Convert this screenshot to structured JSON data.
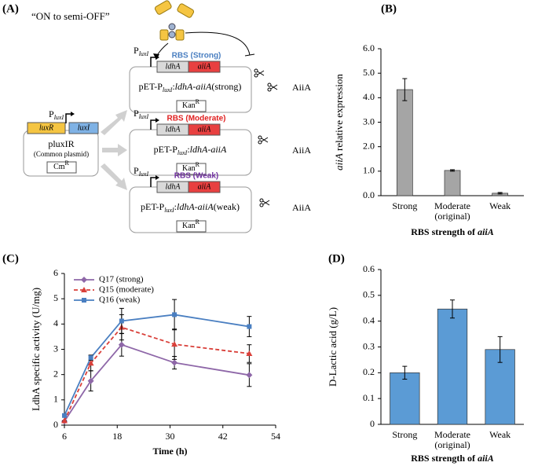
{
  "diagram": {
    "label": "(A)",
    "caption": "“ON to semi-OFF”",
    "common_plasmid": {
      "genes": [
        "luxR",
        "luxI"
      ],
      "gene_colors": [
        "#f5c542",
        "#7fb2e5"
      ],
      "promoter": {
        "text": "P",
        "sub": "luxI"
      },
      "name": "pluxIR",
      "note": "(Common plasmid)",
      "marker": {
        "text": "Cm",
        "sup": "R"
      }
    },
    "plasmids": [
      {
        "promoter": {
          "text": "P",
          "sub": "luxI"
        },
        "rbs": "RBS (Strong)",
        "rbs_color": "#4a7fc1",
        "genes": [
          "ldhA",
          "aiiA"
        ],
        "name": {
          "prefix": "pET-P",
          "sub": "luxI",
          "sep": ":",
          "genes": "ldhA-aiiA",
          "suffix": "(strong)"
        },
        "marker": {
          "text": "Kan",
          "sup": "R"
        },
        "product": "AiiA"
      },
      {
        "promoter": {
          "text": "P",
          "sub": "luxI"
        },
        "rbs": "RBS (Moderate)",
        "rbs_color": "#e02020",
        "genes": [
          "ldhA",
          "aiiA"
        ],
        "name": {
          "prefix": "pET-P",
          "sub": "luxI",
          "sep": ":",
          "genes": "ldhA-aiiA"
        },
        "marker": {
          "text": "Kan",
          "sup": "R"
        },
        "product": "AiiA"
      },
      {
        "promoter": {
          "text": "P",
          "sub": "luxI"
        },
        "rbs": "RBS (Weak)",
        "rbs_color": "#7030a0",
        "genes": [
          "ldhA",
          "aiiA"
        ],
        "name": {
          "prefix": "pET-P",
          "sub": "luxI",
          "sep": ":",
          "genes": "ldhA-aiiA",
          "suffix": "(weak)"
        },
        "marker": {
          "text": "Kan",
          "sup": "R"
        },
        "product": "AiiA"
      }
    ]
  },
  "chart_data": [
    {
      "type": "bar",
      "panel": "(B)",
      "categories": [
        [
          "Strong"
        ],
        [
          "Moderate",
          "(original)"
        ],
        [
          "Weak"
        ]
      ],
      "values": [
        4.33,
        1.03,
        0.1
      ],
      "errors": [
        0.45,
        0.03,
        0.03
      ],
      "color": "#a5a5a5",
      "ylim": [
        0,
        6
      ],
      "yticks": [
        {
          "value": 0,
          "label": "0.0"
        },
        {
          "value": 1,
          "label": "1.0"
        },
        {
          "value": 2,
          "label": "2.0"
        },
        {
          "value": 3,
          "label": "3.0"
        },
        {
          "value": 4,
          "label": "4.0"
        },
        {
          "value": 5,
          "label": "5.0"
        },
        {
          "value": 6,
          "label": "6.0"
        }
      ],
      "ylabel": {
        "italic": "aiiA",
        "text": " relative expression"
      },
      "xlabel": {
        "text": "RBS strength of ",
        "italic": "aiiA"
      }
    },
    {
      "type": "line",
      "panel": "(C)",
      "x": [
        6,
        12,
        19,
        31,
        48
      ],
      "series": [
        {
          "name": "Q17 (strong)",
          "color": "#8e67a8",
          "marker": "diamond",
          "linestyle": "solid",
          "values": [
            0.15,
            1.75,
            3.18,
            2.47,
            1.98
          ],
          "errors": [
            0,
            0.4,
            0.45,
            0.25,
            0.45
          ]
        },
        {
          "name": "Q15 (moderate)",
          "color": "#d9403a",
          "marker": "triangle",
          "linestyle": "dashed",
          "values": [
            0.17,
            2.45,
            3.87,
            3.2,
            2.83
          ],
          "errors": [
            0,
            0.3,
            0.5,
            0.6,
            0.35
          ]
        },
        {
          "name": "Q16 (weak)",
          "color": "#4a7fc1",
          "marker": "square",
          "linestyle": "solid",
          "values": [
            0.38,
            2.67,
            4.12,
            4.37,
            3.9
          ],
          "errors": [
            0.05,
            0.1,
            0.5,
            0.6,
            0.4
          ]
        }
      ],
      "xlim": [
        6,
        54
      ],
      "xticks": [
        6,
        18,
        30,
        42,
        54
      ],
      "ylim": [
        0,
        6
      ],
      "yticks": [
        0,
        1,
        2,
        3,
        4,
        5,
        6
      ],
      "xlabel": "Time (h)",
      "ylabel": "LdhA specific activity (U/mg)",
      "legend": "upper left"
    },
    {
      "type": "bar",
      "panel": "(D)",
      "categories": [
        [
          "Strong"
        ],
        [
          "Moderate",
          "(original)"
        ],
        [
          "Weak"
        ]
      ],
      "values": [
        0.2,
        0.447,
        0.29
      ],
      "errors": [
        0.025,
        0.035,
        0.05
      ],
      "color": "#5b9bd5",
      "ylim": [
        0,
        0.6
      ],
      "yticks": [
        0,
        0.1,
        0.2,
        0.3,
        0.4,
        0.5,
        0.6
      ],
      "ylabel": "D-Lactic acid (g/L)",
      "xlabel": {
        "text": "RBS strength of ",
        "italic": "aiiA"
      }
    }
  ]
}
